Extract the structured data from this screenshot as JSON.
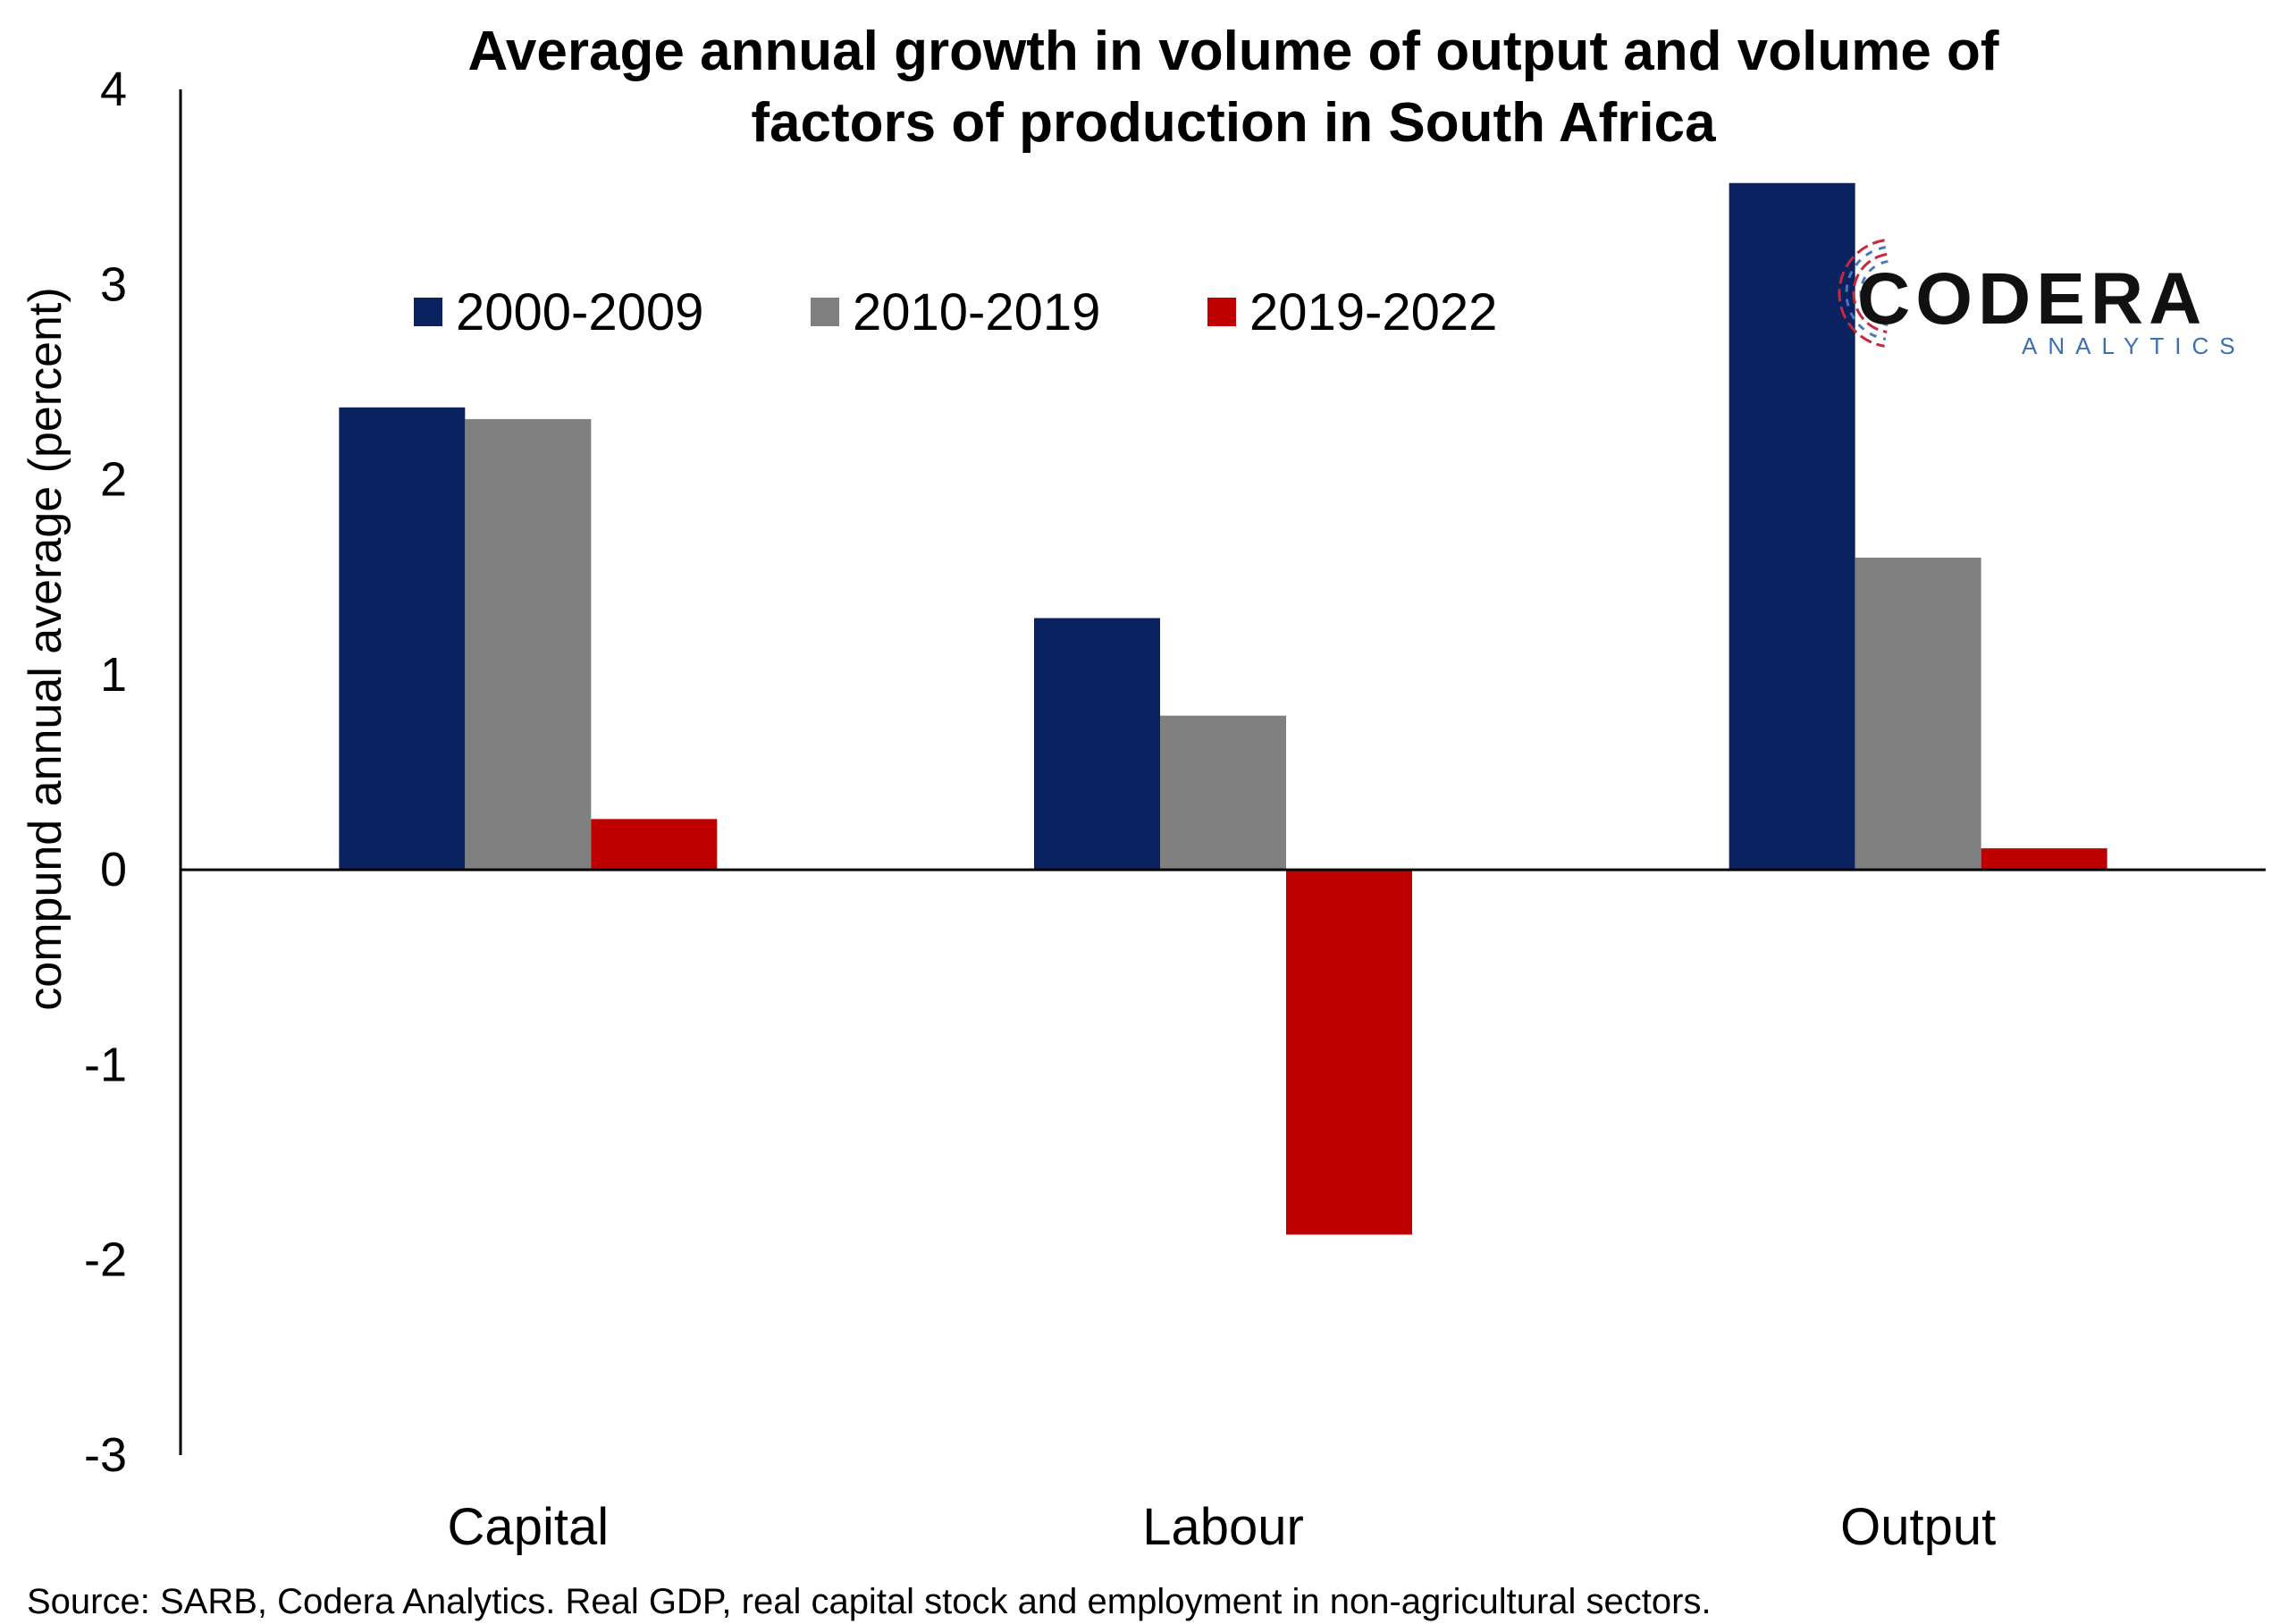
{
  "colors": {
    "series1": "#0b2260",
    "series2": "#808080",
    "series3": "#c00000",
    "logo_text": "#111111",
    "logo_sub": "#3d6fb5",
    "logo_red": "#c8283c",
    "logo_blue": "#4a79b8"
  },
  "logo": {
    "name": "CODERA",
    "sub": "ANALYTICS"
  },
  "source_note": "Source: SARB, Codera Analytics. Real GDP, real capital stock and employment in non-agricultural sectors.",
  "chart_data": {
    "type": "bar",
    "title_lines": [
      "Average annual growth in volume of output and volume of",
      "factors of production in South Africa"
    ],
    "ylabel": "compund annual average (percent)",
    "xlabel": "",
    "ylim": [
      -3,
      4
    ],
    "yticks": [
      4,
      3,
      2,
      1,
      0,
      -1,
      -2,
      -3
    ],
    "grid": false,
    "legend_position": "top-center",
    "categories": [
      "Capital",
      "Labour",
      "Output"
    ],
    "series": [
      {
        "name": "2000-2009",
        "values": [
          2.37,
          1.29,
          3.52
        ]
      },
      {
        "name": "2010-2019",
        "values": [
          2.31,
          0.79,
          1.6
        ]
      },
      {
        "name": "2019-2022",
        "values": [
          0.26,
          -1.87,
          0.11
        ]
      }
    ]
  }
}
